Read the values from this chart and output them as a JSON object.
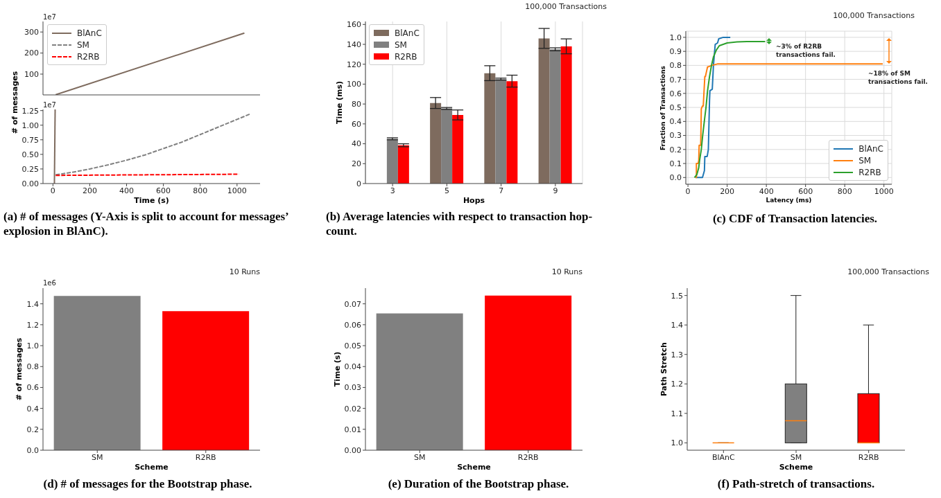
{
  "chart_data": [
    {
      "type": "line",
      "series": [
        {
          "color": "#7e6b5e",
          "x": [
            15,
            1040
          ],
          "values": [
            2,
            295
          ]
        }
      ],
      "xlim": [
        -54,
        1125
      ],
      "xticks": [
        0,
        200,
        400,
        600,
        800,
        1000
      ],
      "ylim": [
        1.25,
        350
      ],
      "yticks": [
        100,
        200,
        300
      ],
      "tick_labels": "y",
      "annotations": [
        "1e7"
      ]
    },
    {
      "type": "line",
      "title": "(a) # of messages (Y-Axis is split to account for messages’ explosion in BlAnC).",
      "xlabel": "Time (s)",
      "ylabel": "# of messages",
      "series": [
        {
          "name": "BlAnC",
          "color": "#7e6b5e",
          "x": [
            8,
            12
          ],
          "values": [
            0,
            1.27
          ]
        },
        {
          "name": "SM",
          "color": "#808080",
          "line_style": "dashed",
          "x": [
            15,
            100,
            200,
            300,
            400,
            500,
            600,
            700,
            800,
            900,
            1000,
            1070
          ],
          "values": [
            0.15,
            0.19,
            0.25,
            0.32,
            0.4,
            0.49,
            0.6,
            0.71,
            0.84,
            0.97,
            1.1,
            1.19
          ]
        },
        {
          "name": "R2RB",
          "color": "#ff0000",
          "line_style": "dashed",
          "x": [
            15,
            1010
          ],
          "values": [
            0.14,
            0.16
          ]
        }
      ],
      "xlim": [
        -54,
        1125
      ],
      "xticks": [
        0,
        200,
        400,
        600,
        800,
        1000
      ],
      "ylim": [
        0,
        1.27
      ],
      "yticks": [
        {
          "value": 0,
          "label": "0.00"
        },
        0.25,
        {
          "value": 0.5,
          "label": "0.50"
        },
        0.75,
        {
          "value": 1,
          "label": "1.00"
        },
        1.25
      ],
      "legend": "top left",
      "annotations": [
        "1e7"
      ]
    },
    {
      "type": "bar",
      "title": "(b) Average latencies with respect to transaction hop-count.",
      "subtitle": "100,000 Transactions",
      "xlabel": "Hops",
      "ylabel": "Time (ms)",
      "categories": [
        "3",
        "5",
        "7",
        "9"
      ],
      "series": [
        {
          "name": "BlAnC",
          "color": "#7e6b5e",
          "values": [
            0,
            81,
            111,
            146
          ],
          "errors": [
            null,
            5.5,
            7.5,
            10
          ]
        },
        {
          "name": "SM",
          "color": "#808080",
          "values": [
            45,
            75.5,
            105,
            135
          ],
          "errors": [
            1,
            1,
            1,
            1.5
          ]
        },
        {
          "name": "R2RB",
          "color": "#ff0000",
          "values": [
            38.5,
            69,
            103,
            138
          ],
          "errors": [
            1.5,
            5,
            6,
            7.5
          ]
        }
      ],
      "ylim": [
        0,
        163
      ],
      "yticks": [
        0,
        20,
        40,
        60,
        80,
        100,
        120,
        140,
        160
      ],
      "grid": "x",
      "legend": "top left"
    },
    {
      "type": "line",
      "title": "(c) CDF of Transaction latencies.",
      "subtitle": "100,000 Transactions",
      "xlabel": "Latency (ms)",
      "ylabel": "Fraction of Transactions",
      "series": [
        {
          "name": "BlAnC",
          "color": "#1f77b4",
          "x": [
            39,
            74,
            84,
            86,
            98,
            104,
            110,
            112,
            124,
            130,
            139,
            151,
            157,
            180,
            216
          ],
          "values": [
            0,
            0,
            0.05,
            0.15,
            0.15,
            0.2,
            0.55,
            0.62,
            0.63,
            0.8,
            0.95,
            0.96,
            0.99,
            1.0,
            1.0
          ]
        },
        {
          "name": "SM",
          "color": "#ff7f0e",
          "x": [
            39,
            43,
            43,
            52,
            55,
            57,
            65,
            68,
            74,
            78,
            86,
            89,
            100,
            104,
            122,
            150,
            994
          ],
          "values": [
            0,
            0,
            0.1,
            0.1,
            0.12,
            0.23,
            0.23,
            0.49,
            0.51,
            0.51,
            0.72,
            0.72,
            0.79,
            0.79,
            0.8,
            0.81,
            0.81
          ]
        },
        {
          "name": "R2RB",
          "color": "#2ca02c",
          "x": [
            33,
            45,
            55,
            60,
            68,
            75,
            85,
            92,
            100,
            110,
            120,
            130,
            145,
            160,
            200,
            250,
            300,
            394
          ],
          "values": [
            0,
            0.02,
            0.07,
            0.13,
            0.2,
            0.3,
            0.42,
            0.5,
            0.62,
            0.72,
            0.8,
            0.86,
            0.91,
            0.94,
            0.96,
            0.967,
            0.97,
            0.97
          ]
        }
      ],
      "xlim": [
        -11,
        1040
      ],
      "xticks": [
        0,
        200,
        400,
        600,
        800,
        1000
      ],
      "ylim": [
        -0.048,
        1.044
      ],
      "yticks": [
        {
          "value": 0,
          "label": "0.0"
        },
        0.1,
        0.2,
        0.3,
        0.4,
        0.5,
        0.6,
        0.7,
        0.8,
        0.9,
        {
          "value": 1,
          "label": "1.0"
        }
      ],
      "grid": true,
      "legend": "bottom right",
      "annotations": [
        "~3% of R2RB transactions fail.",
        "~18% of SM transactions fail."
      ]
    },
    {
      "type": "bar",
      "title": "(d) # of messages for the Bootstrap phase.",
      "subtitle": "10 Runs",
      "xlabel": "Scheme",
      "ylabel": "# of messages",
      "categories": [
        "SM",
        "R2RB"
      ],
      "values": [
        1.475,
        1.33
      ],
      "colors": [
        "#808080",
        "#ff0000"
      ],
      "ylim": [
        0,
        1.55
      ],
      "yticks": [
        {
          "value": 0,
          "label": "0.0"
        },
        0.2,
        0.4,
        0.6,
        0.8,
        {
          "value": 1,
          "label": "1.0"
        },
        1.2,
        1.4
      ],
      "annotations": [
        "1e6"
      ]
    },
    {
      "type": "bar",
      "title": "(e) Duration of the Bootstrap phase.",
      "subtitle": "10 Runs",
      "xlabel": "Scheme",
      "ylabel": "Time (s)",
      "categories": [
        "SM",
        "R2RB"
      ],
      "values": [
        0.0654,
        0.0739
      ],
      "colors": [
        "#808080",
        "#ff0000"
      ],
      "ylim": [
        0,
        0.0775
      ],
      "yticks": [
        {
          "value": 0,
          "label": "0.00"
        },
        0.01,
        0.02,
        0.03,
        0.04,
        0.05,
        0.06,
        0.07
      ]
    },
    {
      "type": "box",
      "title": "(f) Path-stretch of transactions.",
      "subtitle": "100,000 Transactions",
      "xlabel": "Scheme",
      "ylabel": "Path Stretch",
      "categories": [
        "BlAnC",
        "SM",
        "R2RB"
      ],
      "colors": [
        "#ff7f0e",
        "#808080",
        "#ff0000"
      ],
      "boxes": [
        {
          "low": 1,
          "q1": 1,
          "median": 1,
          "q3": 1,
          "high": 1
        },
        {
          "low": 1,
          "q1": 1,
          "median": 1.075,
          "q3": 1.2,
          "high": 1.5
        },
        {
          "low": 1,
          "q1": 1,
          "median": 1,
          "q3": 1.167,
          "high": 1.4
        }
      ],
      "ylim": [
        0.975,
        1.525
      ],
      "yticks": [
        {
          "value": 1,
          "label": "1.0"
        },
        1.1,
        1.2,
        1.3,
        1.4,
        1.5
      ]
    }
  ]
}
